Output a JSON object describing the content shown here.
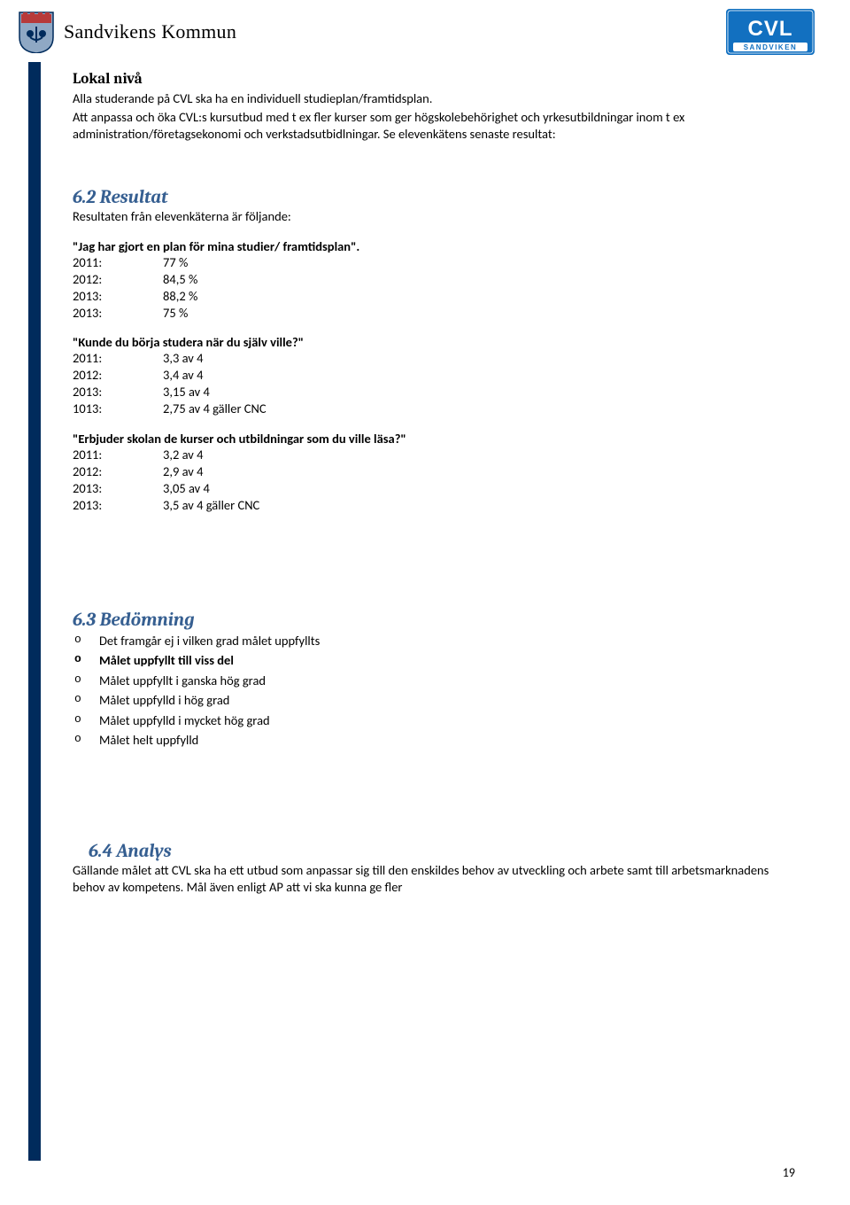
{
  "header": {
    "kommun_title": "Sandvikens Kommun",
    "cvl_top": "CVL",
    "cvl_bottom": "SANDVIKEN"
  },
  "local": {
    "heading": "Lokal nivå",
    "p1": "Alla studerande på CVL ska ha en individuell studieplan/framtidsplan.",
    "p2": "Att anpassa och öka CVL:s kursutbud med t ex fler kurser som ger högskolebehörighet och yrkesutbildningar inom t ex administration/företagsekonomi och verkstadsutbidlningar. Se elevenkätens senaste resultat:"
  },
  "resultat": {
    "heading": "6.2 Resultat",
    "intro": "Resultaten från elevenkäterna är följande:",
    "q1": {
      "title": "\"Jag har gjort en plan för mina studier/ framtidsplan\".",
      "rows": [
        {
          "year": "2011:",
          "val": "77 %"
        },
        {
          "year": "2012:",
          "val": "84,5 %"
        },
        {
          "year": "2013:",
          "val": "88,2 %"
        },
        {
          "year": "2013:",
          "val": "75 %"
        }
      ]
    },
    "q2": {
      "title": "\"Kunde du börja studera när du själv ville?\"",
      "rows": [
        {
          "year": "2011:",
          "val": "3,3 av 4"
        },
        {
          "year": "2012:",
          "val": "3,4 av 4"
        },
        {
          "year": "2013:",
          "val": "3,15 av 4"
        },
        {
          "year": "1013:",
          "val": "2,75 av 4 gäller CNC"
        }
      ]
    },
    "q3": {
      "title": "\"Erbjuder skolan de kurser och utbildningar som du ville läsa?\"",
      "rows": [
        {
          "year": " 2011:",
          "val": "3,2 av 4"
        },
        {
          "year": "2012:",
          "val": "2,9 av 4"
        },
        {
          "year": "2013:",
          "val": "3,05 av 4"
        },
        {
          "year": "2013:",
          "val": "3,5 av 4 gäller CNC"
        }
      ]
    }
  },
  "bedomning": {
    "heading": "6.3 Bedömning",
    "items": [
      {
        "text": "Det framgår ej i vilken grad målet uppfyllts",
        "bold": false
      },
      {
        "text": "Målet uppfyllt till viss del",
        "bold": true
      },
      {
        "text": "Målet uppfyllt i ganska hög grad",
        "bold": false
      },
      {
        "text": "Målet uppfylld i hög grad",
        "bold": false
      },
      {
        "text": "Målet uppfylld i mycket hög grad",
        "bold": false
      },
      {
        "text": "Målet helt uppfylld",
        "bold": false
      }
    ]
  },
  "analys": {
    "heading": "6.4 Analys",
    "p": "Gällande målet att CVL ska ha ett utbud som anpassar sig till den enskildes behov av utveckling och arbete samt till arbetsmarknadens behov av kompetens. Mål även enligt AP att vi ska kunna ge fler"
  },
  "page_number": "19"
}
